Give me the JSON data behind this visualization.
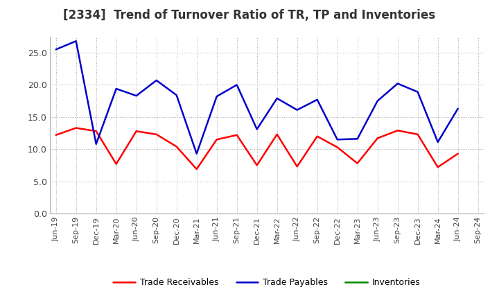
{
  "title": "[2334]  Trend of Turnover Ratio of TR, TP and Inventories",
  "x_labels": [
    "Jun-19",
    "Sep-19",
    "Dec-19",
    "Mar-20",
    "Jun-20",
    "Sep-20",
    "Dec-20",
    "Mar-21",
    "Jun-21",
    "Sep-21",
    "Dec-21",
    "Mar-22",
    "Jun-22",
    "Sep-22",
    "Dec-22",
    "Mar-23",
    "Jun-23",
    "Sep-23",
    "Dec-23",
    "Mar-24",
    "Jun-24",
    "Sep-24"
  ],
  "trade_receivables": [
    12.2,
    13.3,
    12.8,
    7.7,
    12.8,
    12.3,
    10.4,
    6.9,
    11.5,
    12.2,
    7.5,
    12.3,
    7.3,
    12.0,
    10.3,
    7.8,
    11.7,
    12.9,
    12.3,
    7.2,
    9.3,
    null
  ],
  "trade_payables": [
    25.5,
    26.8,
    10.8,
    19.4,
    18.3,
    20.7,
    18.4,
    9.3,
    18.2,
    20.0,
    13.1,
    17.9,
    16.1,
    17.7,
    11.5,
    11.6,
    17.5,
    20.2,
    18.9,
    11.1,
    16.3,
    null
  ],
  "inventories": [
    null,
    null,
    null,
    null,
    null,
    null,
    null,
    null,
    null,
    null,
    null,
    null,
    null,
    null,
    null,
    null,
    null,
    null,
    null,
    null,
    null,
    null
  ],
  "ylim": [
    0.0,
    27.5
  ],
  "yticks": [
    0.0,
    5.0,
    10.0,
    15.0,
    20.0,
    25.0
  ],
  "colors": {
    "trade_receivables": "#ff0000",
    "trade_payables": "#0000cc",
    "inventories": "#008800"
  },
  "legend_labels": [
    "Trade Receivables",
    "Trade Payables",
    "Inventories"
  ],
  "background_color": "#ffffff",
  "plot_bg_color": "#ffffff",
  "grid_color": "#aaaaaa",
  "title_fontsize": 12,
  "axis_fontsize": 8,
  "legend_fontsize": 9,
  "title_color": "#333333"
}
